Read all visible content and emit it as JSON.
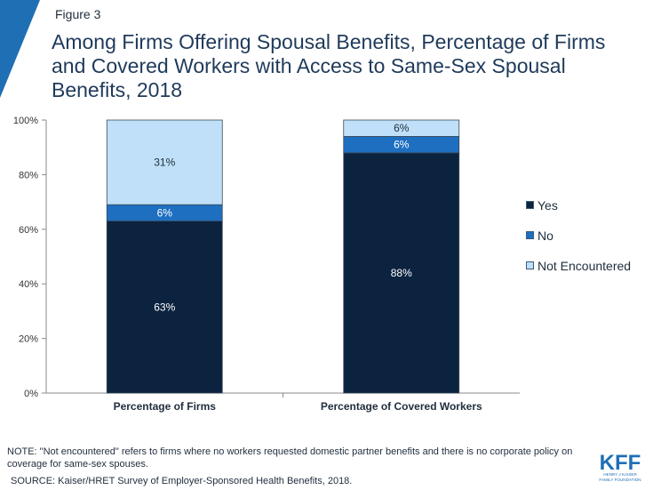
{
  "figure_label": "Figure 3",
  "title": "Among Firms Offering Spousal Benefits, Percentage of Firms and Covered Workers with Access to Same-Sex Spousal Benefits, 2018",
  "note": "NOTE: \"Not encountered\" refers to firms where no workers requested domestic partner benefits and there is no corporate policy on coverage for same-sex spouses.",
  "source": "SOURCE: Kaiser/HRET Survey of Employer-Sponsored Health Benefits, 2018.",
  "logo": {
    "main": "KFF",
    "sub1": "HENRY J KAISER",
    "sub2": "FAMILY FOUNDATION"
  },
  "colors": {
    "yes": "#0c2340",
    "no": "#1e6fc0",
    "not_encountered": "#bfe0f8",
    "accent": "#1f6fb5"
  },
  "chart_data": {
    "type": "bar",
    "stacked": true,
    "categories": [
      "Percentage of Firms",
      "Percentage of Covered Workers"
    ],
    "series": [
      {
        "name": "Yes",
        "values": [
          63,
          88
        ],
        "labels": [
          "63%",
          "88%"
        ]
      },
      {
        "name": "No",
        "values": [
          6,
          6
        ],
        "labels": [
          "6%",
          "6%"
        ]
      },
      {
        "name": "Not Encountered",
        "values": [
          31,
          6
        ],
        "labels": [
          "31%",
          "6%"
        ]
      }
    ],
    "ylim": [
      0,
      100
    ],
    "yticks": [
      "0%",
      "20%",
      "40%",
      "60%",
      "80%",
      "100%"
    ],
    "ytick_values": [
      0,
      20,
      40,
      60,
      80,
      100
    ],
    "legend_position": "right",
    "grid": false
  }
}
